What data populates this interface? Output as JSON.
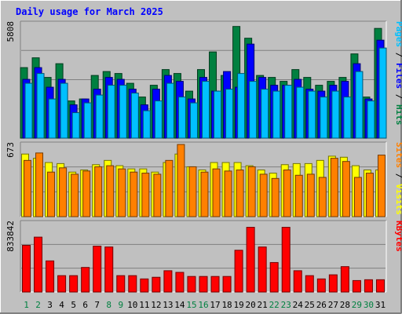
{
  "chart_data": {
    "type": "bar",
    "title": "Daily usage for March 2025",
    "categories": [
      "1",
      "2",
      "3",
      "4",
      "5",
      "6",
      "7",
      "8",
      "9",
      "10",
      "11",
      "12",
      "13",
      "14",
      "15",
      "16",
      "17",
      "18",
      "19",
      "20",
      "21",
      "22",
      "23",
      "24",
      "25",
      "26",
      "27",
      "28",
      "29",
      "30",
      "31"
    ],
    "weekend_days": [
      "1",
      "2",
      "8",
      "9",
      "15",
      "16",
      "22",
      "23",
      "29",
      "30"
    ],
    "panels": [
      {
        "name": "hits-files-pages",
        "scale_label": "5808",
        "ymax": 5808,
        "label_parts": [
          {
            "text": "Pages",
            "color": "#00c0ff"
          },
          {
            "text": " / ",
            "color": "#000000"
          },
          {
            "text": "Files",
            "color": "#0000ff"
          },
          {
            "text": " / ",
            "color": "#000000"
          },
          {
            "text": "Hits",
            "color": "#008040"
          }
        ],
        "series": [
          {
            "name": "Hits",
            "color": "#008040",
            "values": [
              3600,
              4100,
              3100,
              3800,
              1900,
              2000,
              3200,
              3400,
              3300,
              2800,
              2100,
              2700,
              3500,
              3300,
              2400,
              3500,
              4400,
              3200,
              5700,
              5100,
              3200,
              3100,
              2900,
              3500,
              3100,
              2700,
              2900,
              3100,
              4300,
              2100,
              5600
            ]
          },
          {
            "name": "Files",
            "color": "#0000ff",
            "values": [
              3000,
              3600,
              2600,
              3000,
              1700,
              2000,
              2500,
              3100,
              3000,
              2500,
              1700,
              2500,
              3200,
              2900,
              2000,
              3100,
              2400,
              3400,
              2600,
              4800,
              3100,
              2700,
              2700,
              3000,
              2500,
              2400,
              2700,
              2900,
              3800,
              2000,
              5000
            ]
          },
          {
            "name": "Pages",
            "color": "#00c0ff",
            "values": [
              2800,
              3300,
              2000,
              2800,
              1300,
              1800,
              2200,
              2700,
              2700,
              2300,
              1400,
              1900,
              2800,
              2100,
              1800,
              2900,
              2400,
              2500,
              3300,
              2900,
              2500,
              2400,
              2700,
              2600,
              2400,
              2100,
              2400,
              2100,
              3400,
              1900,
              4600
            ]
          }
        ]
      },
      {
        "name": "visits-sites",
        "scale_label": "673",
        "ymax": 673,
        "label_parts": [
          {
            "text": "Sites",
            "color": "#ff8000"
          },
          {
            "text": " / ",
            "color": "#000000"
          },
          {
            "text": "Visits",
            "color": "#ffff00"
          }
        ],
        "series": [
          {
            "name": "Visits",
            "color": "#ffff00",
            "values": [
              590,
              550,
              510,
              500,
              420,
              440,
              490,
              530,
              480,
              450,
              450,
              420,
              510,
              590,
              470,
              440,
              510,
              510,
              510,
              480,
              440,
              410,
              490,
              500,
              500,
              530,
              570,
              560,
              480,
              440,
              440
            ]
          },
          {
            "name": "Sites",
            "color": "#ff8000",
            "values": [
              530,
              600,
              420,
              460,
              400,
              430,
              470,
              480,
              450,
              420,
              410,
              400,
              530,
              680,
              470,
              420,
              450,
              430,
              440,
              470,
              400,
              360,
              440,
              390,
              400,
              370,
              550,
              520,
              370,
              410,
              580
            ]
          }
        ]
      },
      {
        "name": "kbytes",
        "scale_label": "833842",
        "ymax": 833842,
        "label_parts": [
          {
            "text": "KBytes",
            "color": "#ff0000"
          }
        ],
        "series": [
          {
            "name": "KBytes",
            "color": "#ff0000",
            "values": [
              570000,
              670000,
              380000,
              200000,
              200000,
              300000,
              560000,
              550000,
              200000,
              200000,
              160000,
              180000,
              260000,
              240000,
              190000,
              190000,
              190000,
              190000,
              510000,
              790000,
              550000,
              360000,
              790000,
              260000,
              200000,
              160000,
              210000,
              310000,
              140000,
              150000,
              150000
            ]
          }
        ]
      }
    ]
  }
}
